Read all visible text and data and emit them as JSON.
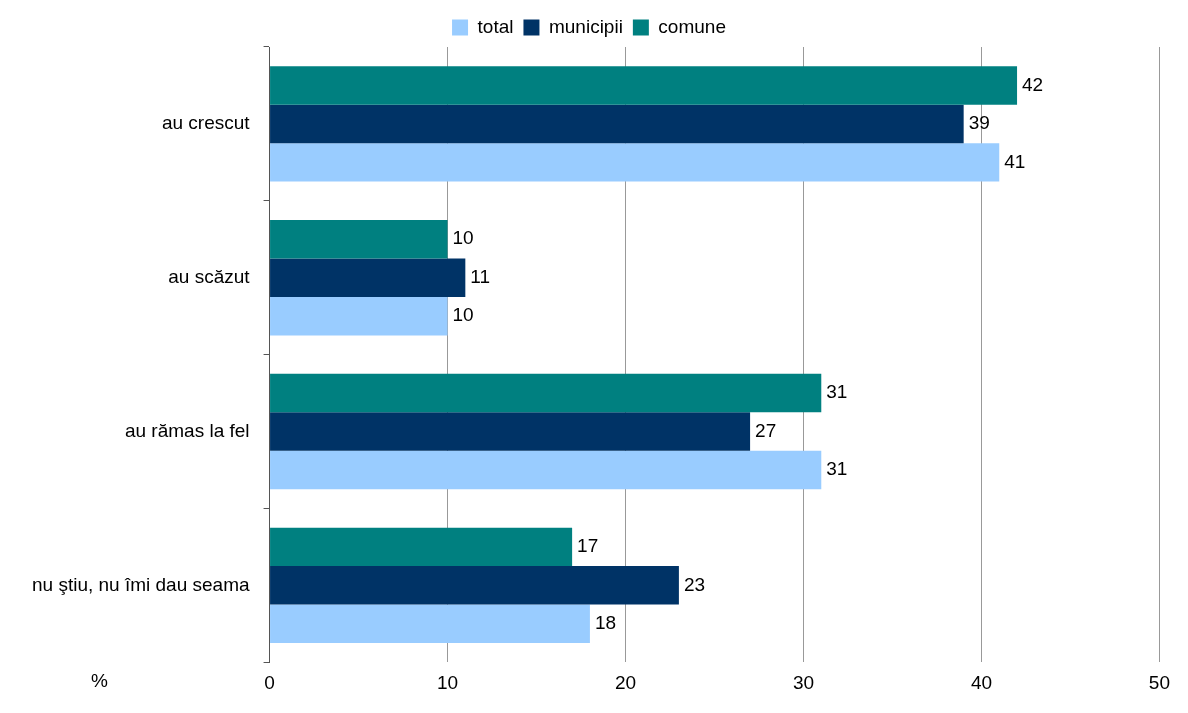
{
  "chart_data": {
    "type": "bar",
    "orientation": "horizontal",
    "xlabel": "%",
    "categories": [
      "au crescut",
      "au scăzut",
      "au rămas la fel",
      "nu ştiu, nu îmi dau seama"
    ],
    "series": [
      {
        "name": "total",
        "color": "#99ccff",
        "values": [
          41,
          10,
          31,
          18
        ]
      },
      {
        "name": "municipii",
        "color": "#003366",
        "values": [
          39,
          11,
          27,
          23
        ]
      },
      {
        "name": "comune",
        "color": "#008080",
        "values": [
          42,
          10,
          31,
          17
        ]
      }
    ],
    "xlim": [
      0,
      50
    ],
    "xticks": [
      0,
      10,
      20,
      30,
      40,
      50
    ],
    "grid": "x",
    "legend": "top",
    "data_labels": true
  }
}
